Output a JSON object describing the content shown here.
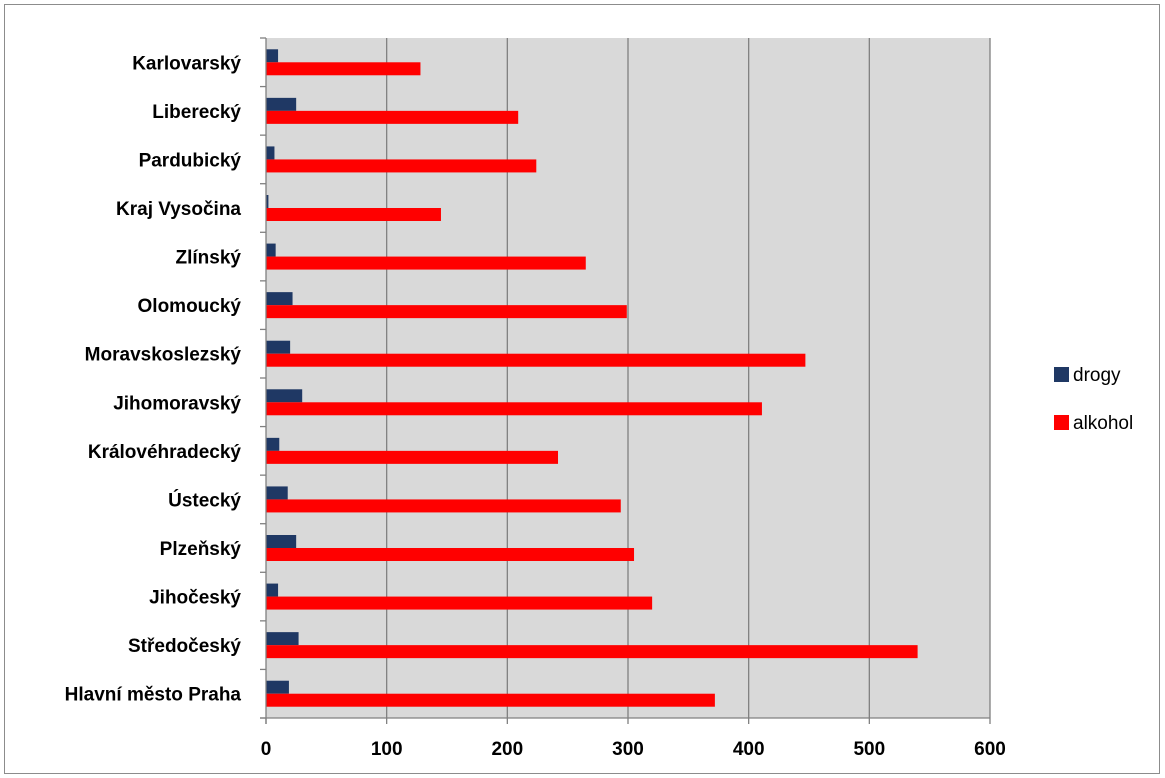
{
  "chart_data": {
    "type": "bar",
    "orientation": "horizontal",
    "title": "",
    "xlabel": "",
    "ylabel": "",
    "xlim": [
      0,
      600
    ],
    "x_ticks": [
      0,
      100,
      200,
      300,
      400,
      500,
      600
    ],
    "grid": "vertical major gridlines",
    "plot_background": "#d9d9d9",
    "legend_position": "right",
    "categories": [
      "Karlovarský",
      "Liberecký",
      "Pardubický",
      "Kraj Vysočina",
      "Zlínský",
      "Olomoucký",
      "Moravskoslezský",
      "Jihomoravský",
      "Královéhradecký",
      "Ústecký",
      "Plzeňský",
      "Jihočeský",
      "Středočeský",
      "Hlavní město Praha"
    ],
    "series": [
      {
        "name": "drogy",
        "color": "#1f3864",
        "values": [
          10,
          25,
          7,
          2,
          8,
          22,
          20,
          30,
          11,
          18,
          25,
          10,
          27,
          19
        ]
      },
      {
        "name": "alkohol",
        "color": "#ff0000",
        "values": [
          128,
          209,
          224,
          145,
          265,
          299,
          447,
          411,
          242,
          294,
          305,
          320,
          540,
          372
        ]
      }
    ]
  }
}
